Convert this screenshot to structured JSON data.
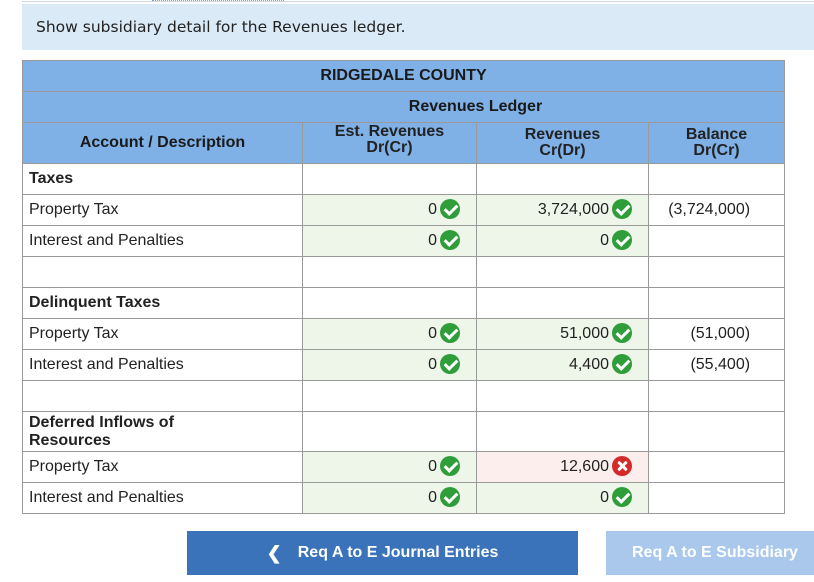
{
  "instruction": "Show subsidiary detail for the Revenues ledger.",
  "ledger": {
    "entity": "RIDGEDALE COUNTY",
    "title": "Revenues Ledger",
    "columns": {
      "account": "Account / Description",
      "est_line1": "Est. Revenues",
      "est_line2": "Dr(Cr)",
      "rev_line1": "Revenues",
      "rev_line2": "Cr(Dr)",
      "bal_line1": "Balance",
      "bal_line2": "Dr(Cr)"
    },
    "sections": [
      {
        "heading": "Taxes",
        "rows": [
          {
            "label": "Property Tax",
            "est": "0",
            "rev": "3,724,000",
            "bal": "(3,724,000)"
          },
          {
            "label": "Interest and Penalties",
            "est": "0",
            "rev": "0",
            "bal": ""
          }
        ]
      },
      {
        "heading": "Delinquent Taxes",
        "rows": [
          {
            "label": "Property Tax",
            "est": "0",
            "rev": "51,000",
            "bal": "(51,000)"
          },
          {
            "label": "Interest and Penalties",
            "est": "0",
            "rev": "4,400",
            "bal": "(55,400)"
          }
        ]
      },
      {
        "heading": "Deferred Inflows of Resources",
        "rows": [
          {
            "label": "Property Tax",
            "est": "0",
            "rev": "12,600",
            "bal": ""
          },
          {
            "label": "Interest and Penalties",
            "est": "0",
            "rev": "0",
            "bal": ""
          }
        ]
      }
    ]
  },
  "icons": {
    "correct": "check-circle-icon",
    "incorrect": "x-circle-icon",
    "prev": "chevron-left-icon"
  },
  "colors": {
    "header_blue": "#7fb0e6",
    "correct_green": "#2e9d3a",
    "incorrect_red": "#d42a2a",
    "button_blue": "#3b73bb"
  },
  "nav": {
    "prev_label": "Req A to E Journal Entries",
    "next_label": "Req A to E Subsidiary"
  }
}
